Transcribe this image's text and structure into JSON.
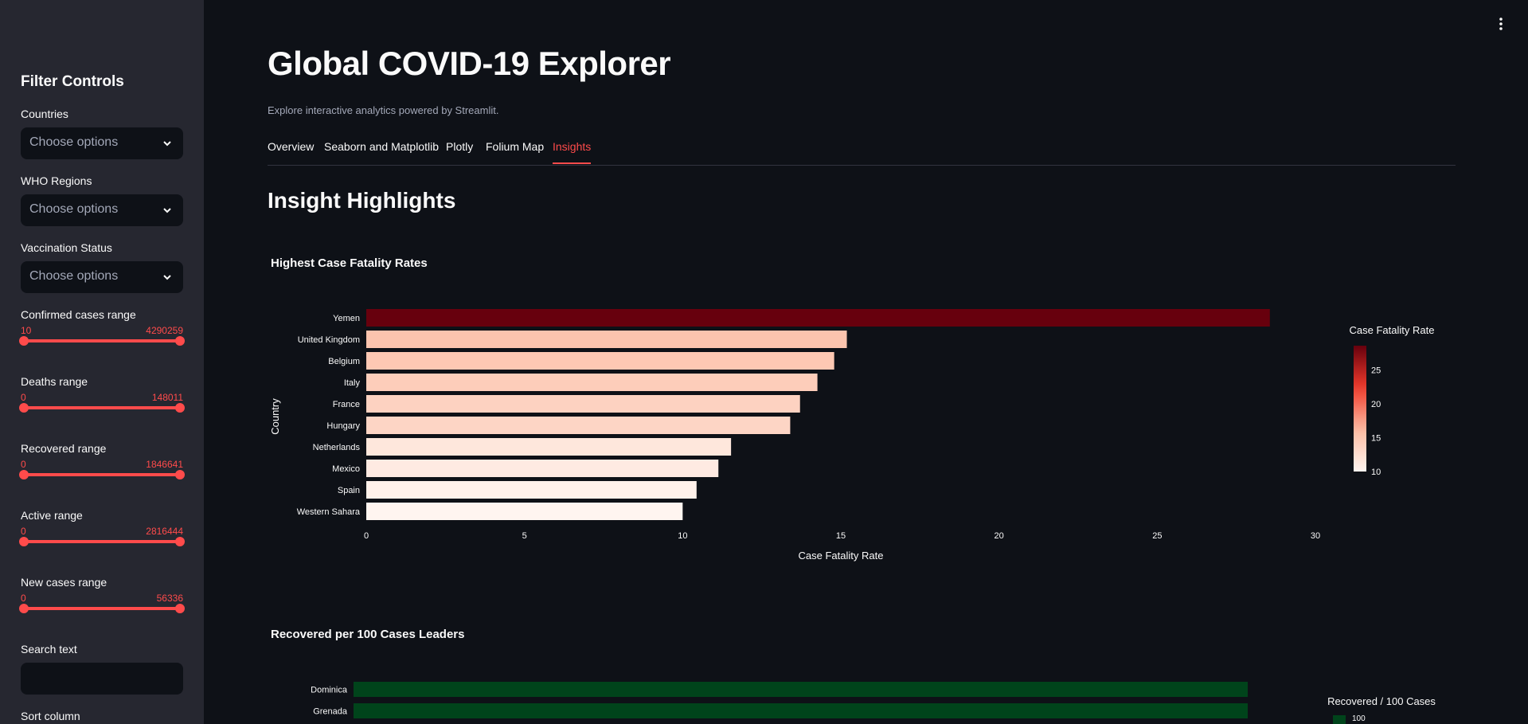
{
  "sidebar": {
    "title": "Filter Controls",
    "selects": [
      {
        "label": "Countries",
        "placeholder": "Choose options"
      },
      {
        "label": "WHO Regions",
        "placeholder": "Choose options"
      },
      {
        "label": "Vaccination Status",
        "placeholder": "Choose options"
      }
    ],
    "sliders": [
      {
        "label": "Confirmed cases range",
        "min": "10",
        "max": "4290259"
      },
      {
        "label": "Deaths range",
        "min": "0",
        "max": "148011"
      },
      {
        "label": "Recovered range",
        "min": "0",
        "max": "1846641"
      },
      {
        "label": "Active range",
        "min": "0",
        "max": "2816444"
      },
      {
        "label": "New cases range",
        "min": "0",
        "max": "56336"
      }
    ],
    "search_label": "Search text",
    "search_value": "",
    "sort_label": "Sort column"
  },
  "main": {
    "title": "Global COVID-19 Explorer",
    "subtitle": "Explore interactive analytics powered by Streamlit.",
    "tabs": [
      {
        "label": "Overview"
      },
      {
        "label": "Seaborn and Matplotlib"
      },
      {
        "label": "Plotly"
      },
      {
        "label": "Folium Map"
      },
      {
        "label": "Insights"
      }
    ],
    "active_tab": "Insights",
    "section_title": "Insight Highlights"
  },
  "colors": {
    "accent": "#ff4b4b",
    "background": "#0e1117",
    "sidebar": "#262730"
  },
  "chart_data": [
    {
      "type": "bar",
      "orientation": "horizontal",
      "title": "Highest Case Fatality Rates",
      "xlabel": "Case Fatality Rate",
      "ylabel": "Country",
      "categories": [
        "Yemen",
        "United Kingdom",
        "Belgium",
        "Italy",
        "France",
        "Hungary",
        "Netherlands",
        "Mexico",
        "Spain",
        "Western Sahara"
      ],
      "values": [
        28.56,
        15.19,
        14.79,
        14.26,
        13.71,
        13.4,
        11.53,
        11.13,
        10.44,
        10.0
      ],
      "xlim": [
        0,
        30
      ],
      "xticks": [
        0,
        5,
        10,
        15,
        20,
        25,
        30
      ],
      "colorbar": {
        "title": "Case Fatality Rate",
        "ticks": [
          10,
          15,
          20,
          25
        ],
        "range": [
          10,
          28.56
        ],
        "colorscale": "Reds"
      },
      "grid": false,
      "legend": "colorbar-right"
    },
    {
      "type": "bar",
      "orientation": "horizontal",
      "title": "Recovered per 100 Cases Leaders",
      "xlabel": "",
      "ylabel": "",
      "categories": [
        "Dominica",
        "Grenada"
      ],
      "values": [
        100,
        100
      ],
      "colorbar": {
        "title": "Recovered / 100 Cases",
        "ticks": [
          100
        ],
        "colorscale": "Greens"
      },
      "grid": false,
      "legend": "colorbar-right"
    }
  ]
}
